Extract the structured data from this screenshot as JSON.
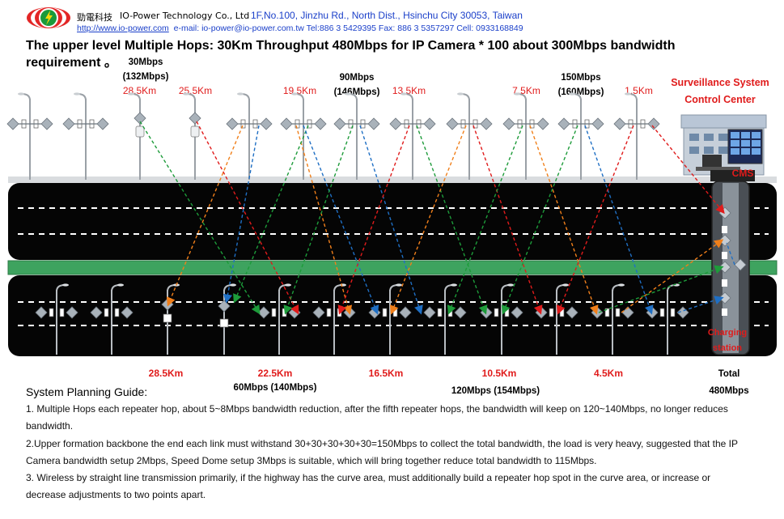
{
  "header": {
    "company_cn": "勁電科技",
    "company_en": "IO-Power Technology Co., Ltd",
    "address": "1F,No.100, Jinzhu Rd., North Dist., Hsinchu City 30053, Taiwan",
    "website": "http://www.io-power.com",
    "contact": "e-mail: io-power@io-power.com.tw Tel:886 3 5429395 Fax: 886 3 5357297 Cell: 0933168849"
  },
  "title": "The upper level Multiple Hops: 30Km Throughput 480Mbps for IP Camera * 100 about 300Mbps bandwidth requirement 。",
  "upper_labels": {
    "bw1_a": "30Mbps",
    "bw1_b": "(132Mbps)",
    "bw2_a": "90Mbps",
    "bw2_b": "(146Mbps)",
    "bw3_a": "150Mbps",
    "bw3_b": "(160Mbps)",
    "d1": "28.5Km",
    "d2": "25.5Km",
    "d3": "19.5Km",
    "d4": "13.5Km",
    "d5": "7.5Km",
    "d6": "1.5Km"
  },
  "control_center": {
    "line1": "Surveillance System",
    "line2": "Control Center",
    "cms": "CMS"
  },
  "charging": {
    "line1": "Charging",
    "line2": "station"
  },
  "lower_labels": {
    "d1": "28.5Km",
    "d2": "22.5Km",
    "d3": "16.5Km",
    "d4": "10.5Km",
    "d5": "4.5Km",
    "bw1": "60Mbps (140Mbps)",
    "bw2": "120Mbps (154Mbps)",
    "total_a": "Total",
    "total_b": "480Mbps"
  },
  "guide": {
    "heading": "System Planning Guide:",
    "p1": "1. Multiple Hops each repeater hop, about 5~8Mbps bandwidth reduction, after the fifth repeater hops, the bandwidth will keep on 120~140Mbps, no longer reduces bandwidth.",
    "p2": "2.Upper formation backbone the end each link must withstand 30+30+30+30+30=150Mbps to collect the total bandwidth, the load is very heavy, suggested that the IP Camera bandwidth setup 2Mbps, Speed Dome setup 3Mbps is suitable, which will bring together reduce total bandwidth to 115Mbps.",
    "p3": "3. Wireless by straight line transmission primarily, if the highway has the curve area, must additionally build a repeater hop spot in the curve area, or increase or decrease adjustments to two points apart."
  },
  "colors": {
    "road": "#050505",
    "median": "#3ea35f",
    "lane": "#ffffff",
    "link_red": "#e01b1b",
    "link_green": "#1d9b3a",
    "link_orange": "#f07f1a",
    "link_blue": "#1f6fc4",
    "accent_text": "#e01b1b",
    "header_blue": "#1a3fc9"
  }
}
